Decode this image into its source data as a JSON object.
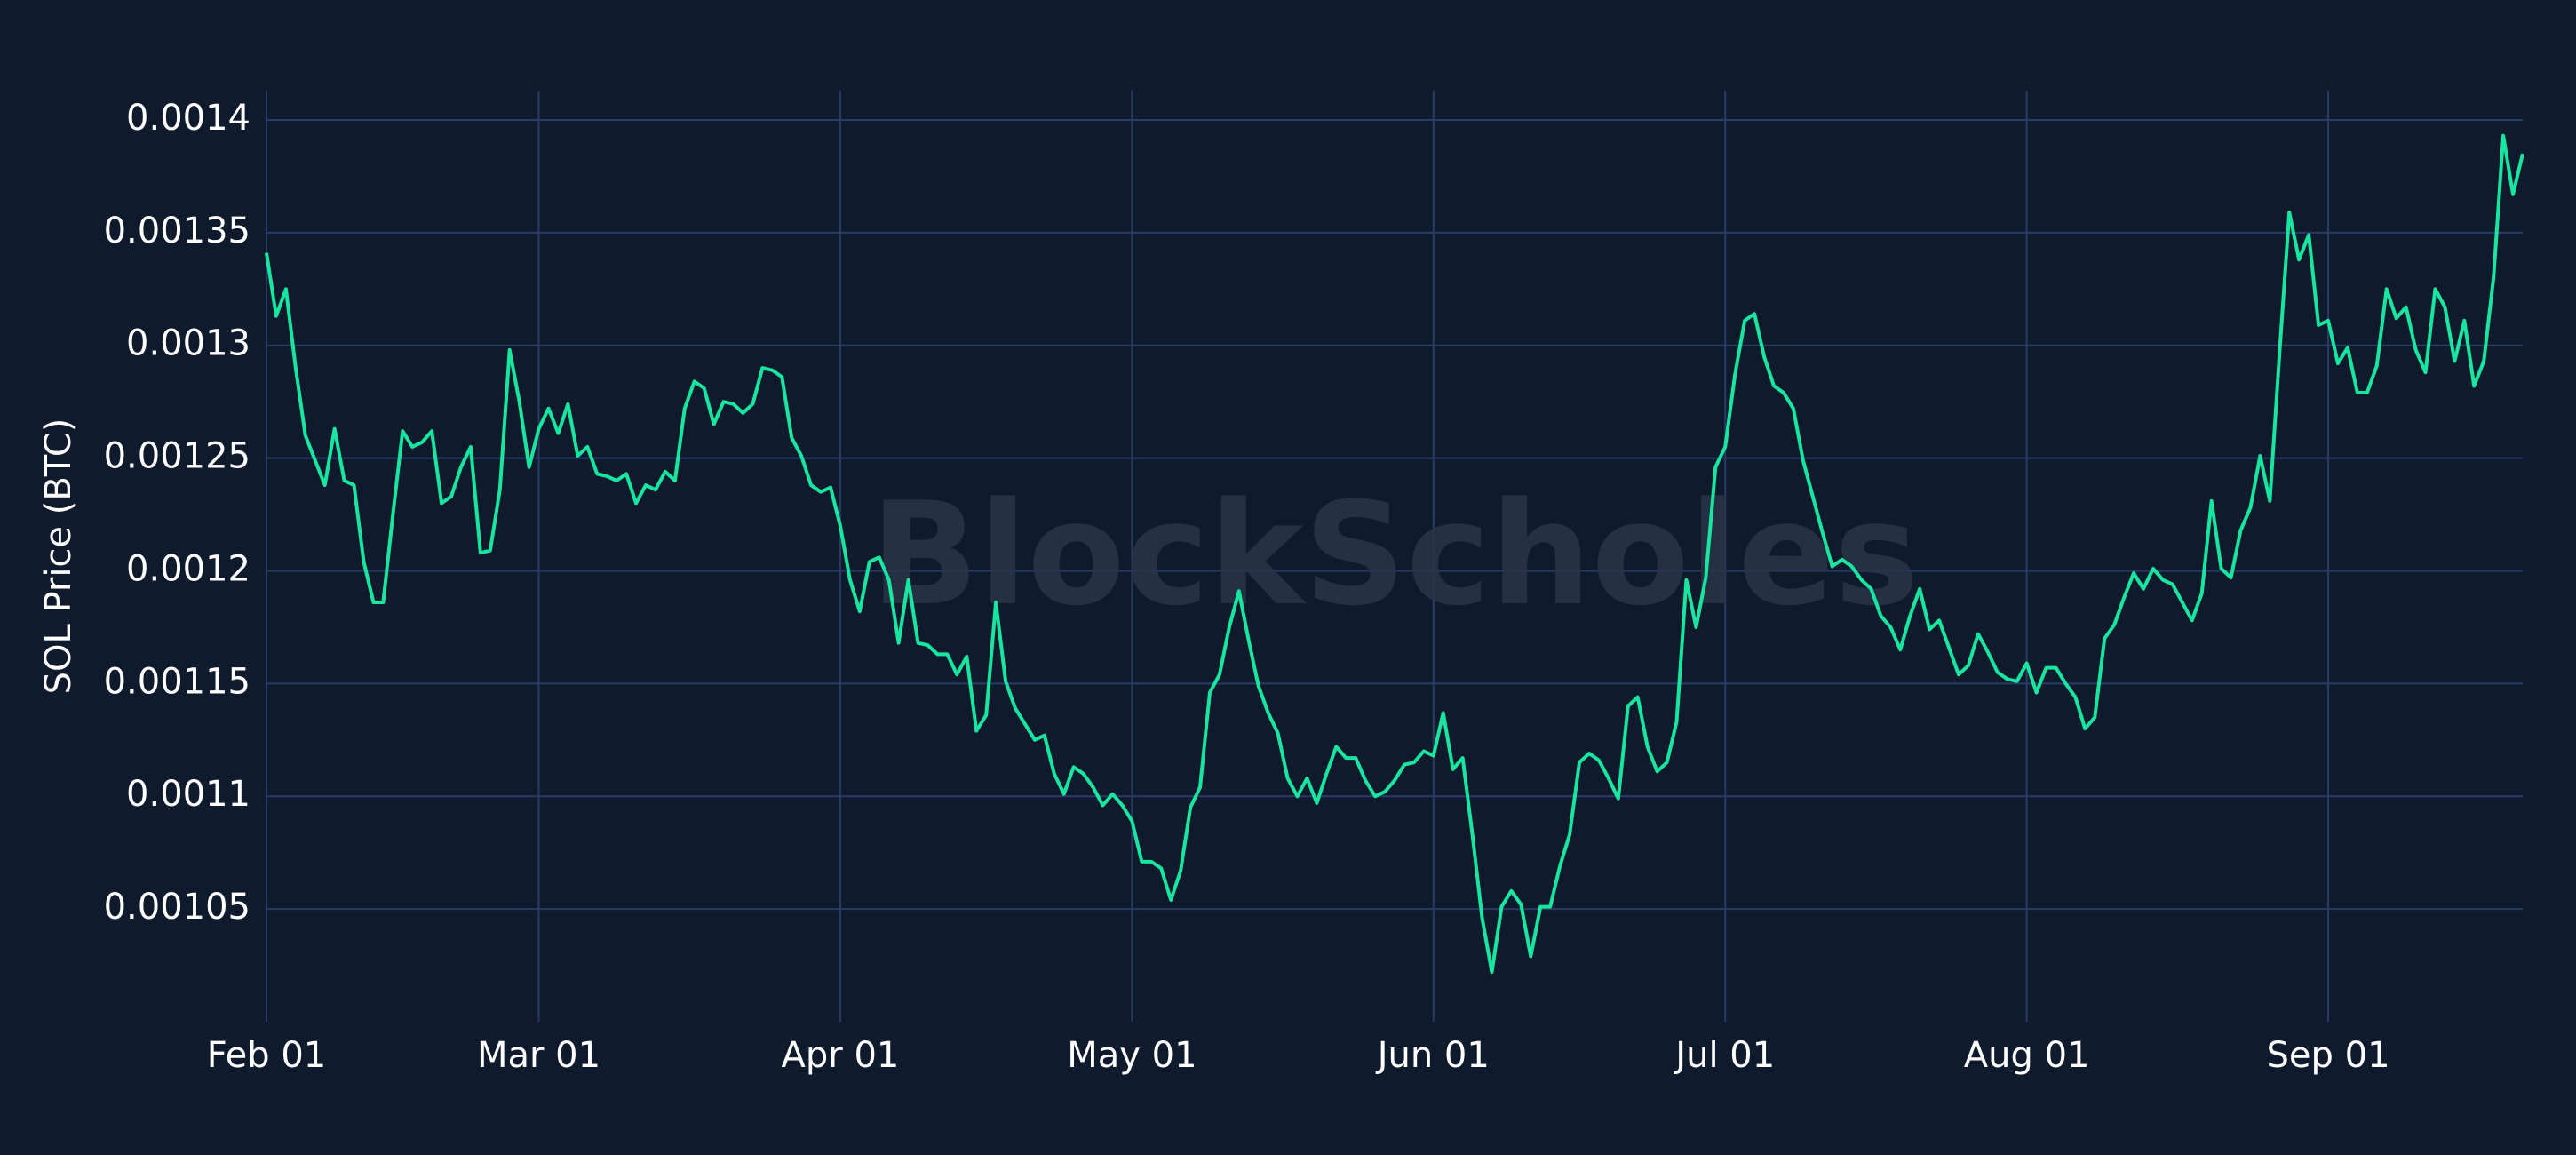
{
  "chart_data": {
    "type": "line",
    "y_label": "SOL Price (BTC)",
    "watermark": "BlockScholes",
    "color": "#18e6a0",
    "grid": true,
    "ylim": [
      0.001,
      0.001413
    ],
    "yticks": [
      0.00105,
      0.0011,
      0.00115,
      0.0012,
      0.00125,
      0.0013,
      0.00135,
      0.0014
    ],
    "categories": [
      "Feb 01",
      null,
      null,
      null,
      null,
      null,
      null,
      null,
      null,
      null,
      null,
      null,
      null,
      null,
      null,
      null,
      null,
      null,
      null,
      null,
      null,
      null,
      null,
      null,
      null,
      null,
      null,
      null,
      "Mar 01",
      null,
      null,
      null,
      null,
      null,
      null,
      null,
      null,
      null,
      null,
      null,
      null,
      null,
      null,
      null,
      null,
      null,
      null,
      null,
      null,
      null,
      null,
      null,
      null,
      null,
      null,
      null,
      null,
      null,
      null,
      "Apr 01",
      null,
      null,
      null,
      null,
      null,
      null,
      null,
      null,
      null,
      null,
      null,
      null,
      null,
      null,
      null,
      null,
      null,
      null,
      null,
      null,
      null,
      null,
      null,
      null,
      null,
      null,
      null,
      null,
      null,
      "May 01",
      null,
      null,
      null,
      null,
      null,
      null,
      null,
      null,
      null,
      null,
      null,
      null,
      null,
      null,
      null,
      null,
      null,
      null,
      null,
      null,
      null,
      null,
      null,
      null,
      null,
      null,
      null,
      null,
      null,
      null,
      "Jun 01",
      null,
      null,
      null,
      null,
      null,
      null,
      null,
      null,
      null,
      null,
      null,
      null,
      null,
      null,
      null,
      null,
      null,
      null,
      null,
      null,
      null,
      null,
      null,
      null,
      null,
      null,
      null,
      null,
      null,
      "Jul 01",
      null,
      null,
      null,
      null,
      null,
      null,
      null,
      null,
      null,
      null,
      null,
      null,
      null,
      null,
      null,
      null,
      null,
      null,
      null,
      null,
      null,
      null,
      null,
      null,
      null,
      null,
      null,
      null,
      null,
      null,
      "Aug 01",
      null,
      null,
      null,
      null,
      null,
      null,
      null,
      null,
      null,
      null,
      null,
      null,
      null,
      null,
      null,
      null,
      null,
      null,
      null,
      null,
      null,
      null,
      null,
      null,
      null,
      null,
      null,
      null,
      null,
      null,
      "Sep 01",
      null,
      null,
      null,
      null,
      null,
      null,
      null,
      null,
      null,
      null,
      null,
      null,
      null,
      null,
      null,
      null,
      null,
      null,
      null,
      null
    ],
    "values": [
      0.001341,
      0.001313,
      0.001325,
      0.00129,
      0.00126,
      0.001249,
      0.001238,
      0.001263,
      0.00124,
      0.001238,
      0.001204,
      0.001186,
      0.001186,
      0.001225,
      0.001262,
      0.001255,
      0.001257,
      0.001262,
      0.00123,
      0.001233,
      0.001246,
      0.001255,
      0.001208,
      0.001209,
      0.001236,
      0.001298,
      0.001275,
      0.001246,
      0.001263,
      0.001272,
      0.001261,
      0.001274,
      0.001251,
      0.001255,
      0.001243,
      0.001242,
      0.00124,
      0.001243,
      0.00123,
      0.001238,
      0.001236,
      0.001244,
      0.00124,
      0.001272,
      0.001284,
      0.001281,
      0.001265,
      0.001275,
      0.001274,
      0.00127,
      0.001274,
      0.00129,
      0.001289,
      0.001286,
      0.001259,
      0.001251,
      0.001238,
      0.001235,
      0.001237,
      0.00122,
      0.001196,
      0.001182,
      0.001204,
      0.001206,
      0.001196,
      0.001168,
      0.001196,
      0.001168,
      0.001167,
      0.001163,
      0.001163,
      0.001154,
      0.001162,
      0.001129,
      0.001136,
      0.001186,
      0.001151,
      0.001139,
      0.001132,
      0.001125,
      0.001127,
      0.00111,
      0.001101,
      0.001113,
      0.00111,
      0.001104,
      0.001096,
      0.001101,
      0.001096,
      0.001089,
      0.001071,
      0.001071,
      0.001068,
      0.001054,
      0.001067,
      0.001095,
      0.001104,
      0.001146,
      0.001154,
      0.001175,
      0.001191,
      0.001169,
      0.001149,
      0.001137,
      0.001128,
      0.001108,
      0.0011,
      0.001108,
      0.001097,
      0.00111,
      0.001122,
      0.001117,
      0.001117,
      0.001107,
      0.0011,
      0.001102,
      0.001107,
      0.001114,
      0.001115,
      0.00112,
      0.001118,
      0.001137,
      0.001112,
      0.001117,
      0.001083,
      0.001046,
      0.001022,
      0.001051,
      0.001058,
      0.001052,
      0.001029,
      0.001051,
      0.001051,
      0.001069,
      0.001083,
      0.001115,
      0.001119,
      0.001116,
      0.001108,
      0.001099,
      0.00114,
      0.001144,
      0.001122,
      0.001111,
      0.001115,
      0.001133,
      0.001196,
      0.001175,
      0.001197,
      0.001246,
      0.001255,
      0.001287,
      0.001311,
      0.001314,
      0.001295,
      0.001282,
      0.001279,
      0.001272,
      0.001249,
      0.001233,
      0.001217,
      0.001202,
      0.001205,
      0.001202,
      0.001196,
      0.001192,
      0.00118,
      0.001175,
      0.001165,
      0.00118,
      0.001192,
      0.001174,
      0.001178,
      0.001166,
      0.001154,
      0.001158,
      0.001172,
      0.001164,
      0.001155,
      0.001152,
      0.001151,
      0.001159,
      0.001146,
      0.001157,
      0.001157,
      0.00115,
      0.001144,
      0.00113,
      0.001135,
      0.00117,
      0.001176,
      0.001188,
      0.001199,
      0.001192,
      0.001201,
      0.001196,
      0.001194,
      0.001186,
      0.001178,
      0.00119,
      0.001231,
      0.001201,
      0.001197,
      0.001218,
      0.001228,
      0.001251,
      0.001231,
      0.001297,
      0.001359,
      0.001338,
      0.001349,
      0.001309,
      0.001311,
      0.001292,
      0.001299,
      0.001279,
      0.001279,
      0.001291,
      0.001325,
      0.001312,
      0.001317,
      0.001298,
      0.001288,
      0.001325,
      0.001317,
      0.001293,
      0.001311,
      0.001282,
      0.001293,
      0.00133,
      0.001393,
      0.001367,
      0.001385
    ]
  }
}
